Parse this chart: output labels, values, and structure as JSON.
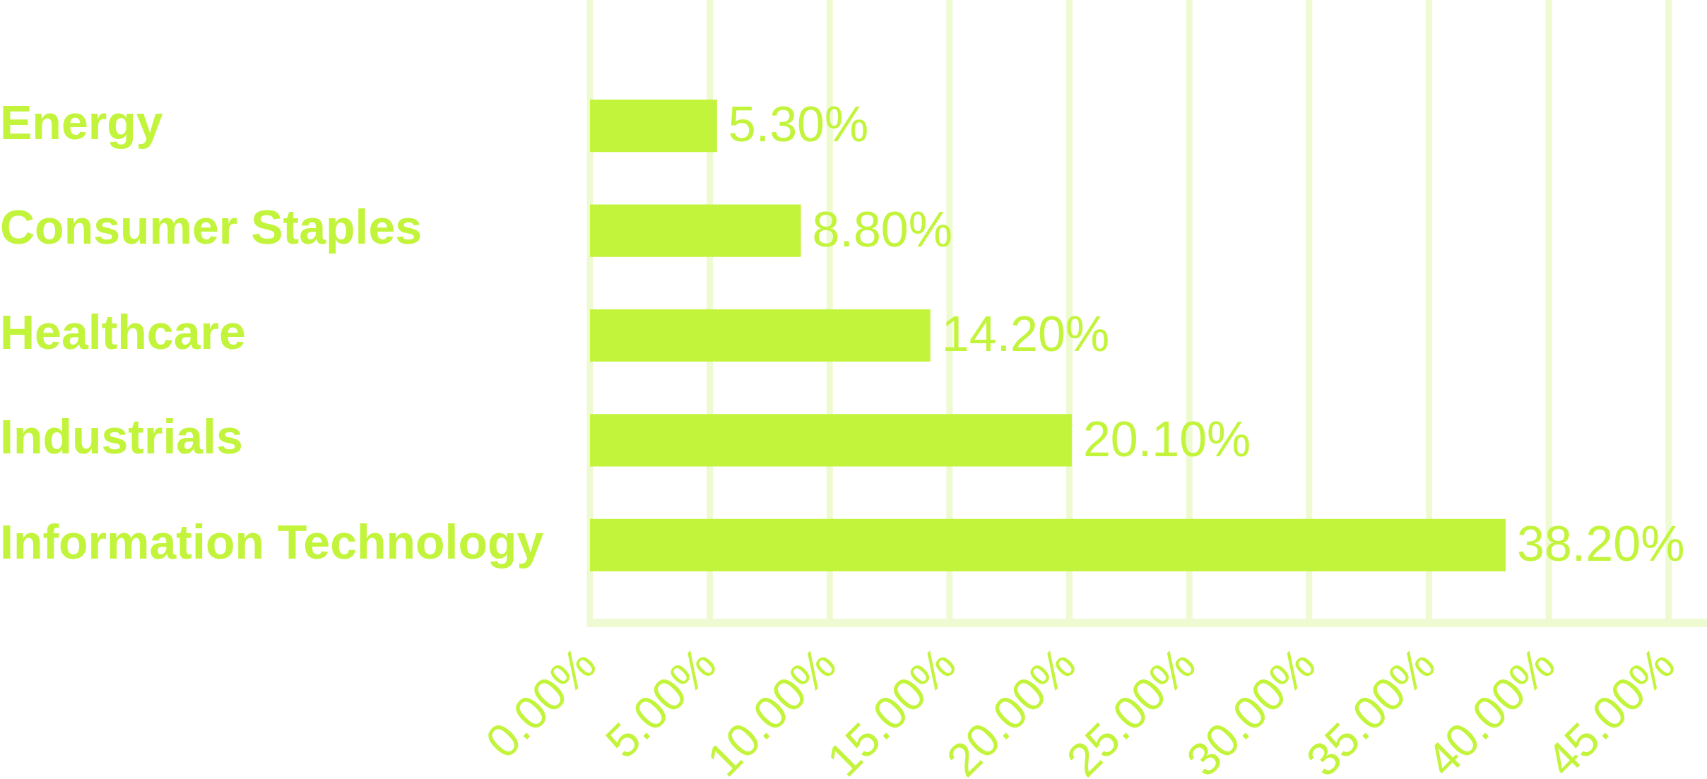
{
  "chart_data": {
    "type": "bar",
    "orientation": "horizontal",
    "categories": [
      "Energy",
      "Consumer Staples",
      "Healthcare",
      "Industrials",
      "Information Technology"
    ],
    "values": [
      5.3,
      8.8,
      14.2,
      20.1,
      38.2
    ],
    "value_labels": [
      "5.30%",
      "8.80%",
      "14.20%",
      "20.10%",
      "38.20%"
    ],
    "color": "#c2f43b",
    "xlim": [
      0,
      46.6
    ],
    "xticks": [
      {
        "value": 0,
        "label": "0.00%"
      },
      {
        "value": 5,
        "label": "5.00%"
      },
      {
        "value": 10,
        "label": "10.00%"
      },
      {
        "value": 15,
        "label": "15.00%"
      },
      {
        "value": 20,
        "label": "20.00%"
      },
      {
        "value": 25,
        "label": "25.00%"
      },
      {
        "value": 30,
        "label": "30.00%"
      },
      {
        "value": 35,
        "label": "35.00%"
      },
      {
        "value": 40,
        "label": "40.00%"
      },
      {
        "value": 45,
        "label": "45.00%"
      }
    ],
    "grid": "x"
  }
}
